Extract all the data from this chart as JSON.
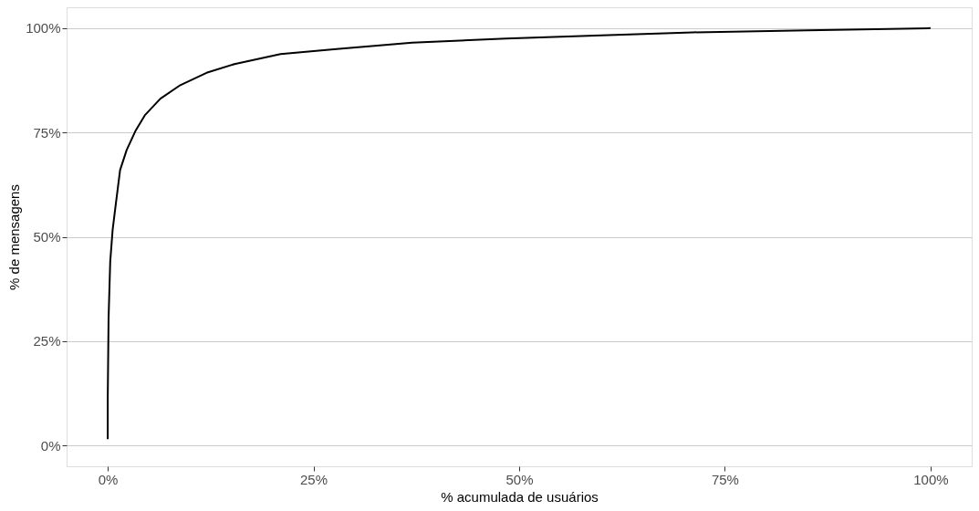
{
  "chart_data": {
    "type": "line",
    "xlabel": "% acumulada de usuários",
    "ylabel": "% de mensagens",
    "x": [
      0,
      0,
      0.1,
      0.3,
      0.6,
      1.0,
      1.5,
      2.3,
      3.4,
      4.5,
      6.4,
      8.7,
      12,
      15.4,
      21,
      27.8,
      37,
      48.4,
      60,
      71.1,
      85,
      100
    ],
    "series": [
      {
        "color": "#000000",
        "values": [
          1.5,
          11.4,
          30.4,
          44,
          51.8,
          58.2,
          66,
          70.8,
          75.5,
          79.1,
          83.1,
          86.2,
          89.3,
          91.4,
          93.8,
          95,
          96.5,
          97.5,
          98.3,
          99.0,
          99.5,
          100
        ]
      }
    ],
    "xlim": [
      -5,
      105
    ],
    "ylim": [
      -5,
      105
    ],
    "xticks": [
      {
        "value": 0,
        "label": "0%"
      },
      {
        "value": 25,
        "label": "25%"
      },
      {
        "value": 50,
        "label": "50%"
      },
      {
        "value": 75,
        "label": "75%"
      },
      {
        "value": 100,
        "label": "100%"
      }
    ],
    "yticks": [
      {
        "value": 0,
        "label": "0%"
      },
      {
        "value": 25,
        "label": "25%"
      },
      {
        "value": 50,
        "label": "50%"
      },
      {
        "value": 75,
        "label": "75%"
      },
      {
        "value": 100,
        "label": "100%"
      }
    ],
    "grid": "y",
    "line_style": "solid",
    "marker": "none"
  }
}
